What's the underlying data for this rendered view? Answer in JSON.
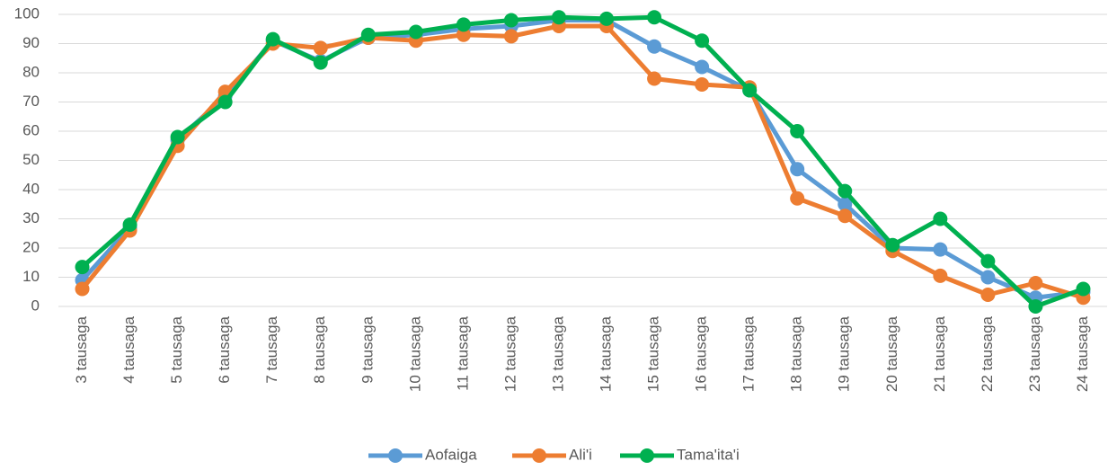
{
  "chart_data": {
    "type": "line",
    "categories": [
      "3 tausaga",
      "4 tausaga",
      "5 tausaga",
      "6 tausaga",
      "7 tausaga",
      "8 tausaga",
      "9 tausaga",
      "10 tausaga",
      "11 tausaga",
      "12 tausaga",
      "13 tausaga",
      "14 tausaga",
      "15 tausaga",
      "16 tausaga",
      "17 tausaga",
      "18 tausaga",
      "19 tausaga",
      "20 tausaga",
      "21 tausaga",
      "22 tausaga",
      "23 tausaga",
      "24 tausaga"
    ],
    "series": [
      {
        "name": "Aofaiga",
        "color": "#5b9bd5",
        "values": [
          9,
          27,
          57,
          72,
          91,
          84,
          92,
          93,
          95,
          96,
          98,
          98,
          89,
          82,
          74,
          47,
          35,
          20,
          19.5,
          10,
          3,
          5
        ]
      },
      {
        "name": "Ali'i",
        "color": "#ed7d31",
        "values": [
          6,
          26,
          55,
          73.5,
          90,
          88.5,
          92,
          91,
          93,
          92.5,
          96,
          96,
          78,
          76,
          75,
          37,
          31,
          19,
          10.5,
          4,
          8,
          3
        ]
      },
      {
        "name": "Tama'ita'i",
        "color": "#00b050",
        "values": [
          13.5,
          28,
          58,
          70,
          91.5,
          83.5,
          93,
          94,
          96.5,
          98,
          99,
          98.5,
          99,
          91,
          74,
          60,
          39.5,
          21,
          30,
          15.5,
          0,
          6
        ]
      }
    ],
    "ylim": [
      0,
      100
    ],
    "yticks": [
      0,
      10,
      20,
      30,
      40,
      50,
      60,
      70,
      80,
      90,
      100
    ],
    "grid": true,
    "legend": "bottom"
  }
}
